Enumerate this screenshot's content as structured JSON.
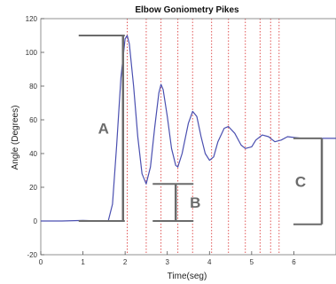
{
  "chart_data": {
    "type": "line",
    "title": "Elbow Goniometry Pikes",
    "xlabel": "Time(seg)",
    "ylabel": "Angle (Degrees)",
    "xlim": [
      0,
      7
    ],
    "ylim": [
      -20,
      120
    ],
    "xticks": [
      0,
      1,
      2,
      3,
      4,
      5,
      6
    ],
    "yticks": [
      -20,
      0,
      20,
      40,
      60,
      80,
      100,
      120
    ],
    "grid": false,
    "series": [
      {
        "color": "#4a4fb0",
        "points": [
          [
            0,
            0
          ],
          [
            0.5,
            0
          ],
          [
            1.0,
            0.3
          ],
          [
            1.4,
            0
          ],
          [
            1.6,
            0
          ],
          [
            1.7,
            10
          ],
          [
            1.8,
            45
          ],
          [
            1.9,
            85
          ],
          [
            2.0,
            108
          ],
          [
            2.05,
            110
          ],
          [
            2.1,
            105
          ],
          [
            2.2,
            80
          ],
          [
            2.3,
            50
          ],
          [
            2.4,
            28
          ],
          [
            2.5,
            22
          ],
          [
            2.6,
            32
          ],
          [
            2.7,
            55
          ],
          [
            2.8,
            76
          ],
          [
            2.85,
            81
          ],
          [
            2.9,
            78
          ],
          [
            3.0,
            62
          ],
          [
            3.1,
            43
          ],
          [
            3.2,
            33
          ],
          [
            3.25,
            32
          ],
          [
            3.35,
            40
          ],
          [
            3.5,
            58
          ],
          [
            3.6,
            65
          ],
          [
            3.7,
            62
          ],
          [
            3.8,
            50
          ],
          [
            3.9,
            40
          ],
          [
            4.0,
            36
          ],
          [
            4.1,
            38
          ],
          [
            4.2,
            47
          ],
          [
            4.35,
            55
          ],
          [
            4.45,
            56
          ],
          [
            4.6,
            52
          ],
          [
            4.75,
            45
          ],
          [
            4.85,
            43
          ],
          [
            5.0,
            44
          ],
          [
            5.1,
            48
          ],
          [
            5.25,
            51
          ],
          [
            5.4,
            50
          ],
          [
            5.55,
            47
          ],
          [
            5.7,
            48
          ],
          [
            5.85,
            50
          ],
          [
            6.0,
            49.5
          ],
          [
            6.2,
            49
          ],
          [
            6.6,
            49
          ],
          [
            7.0,
            49
          ]
        ]
      }
    ],
    "vlines": {
      "color": "#e05555",
      "x": [
        2.05,
        2.5,
        2.85,
        3.25,
        3.6,
        4.05,
        4.45,
        4.85,
        5.2,
        5.45,
        5.65
      ]
    },
    "annotations": [
      {
        "label": "A",
        "from": 0,
        "to": 110,
        "x": 1.95
      },
      {
        "label": "B",
        "from": 22,
        "to": 0,
        "x": 3.2
      },
      {
        "label": "C",
        "from": 49,
        "to": -2,
        "x": 7.0
      }
    ],
    "annotation_color": "#6b6b6b"
  }
}
